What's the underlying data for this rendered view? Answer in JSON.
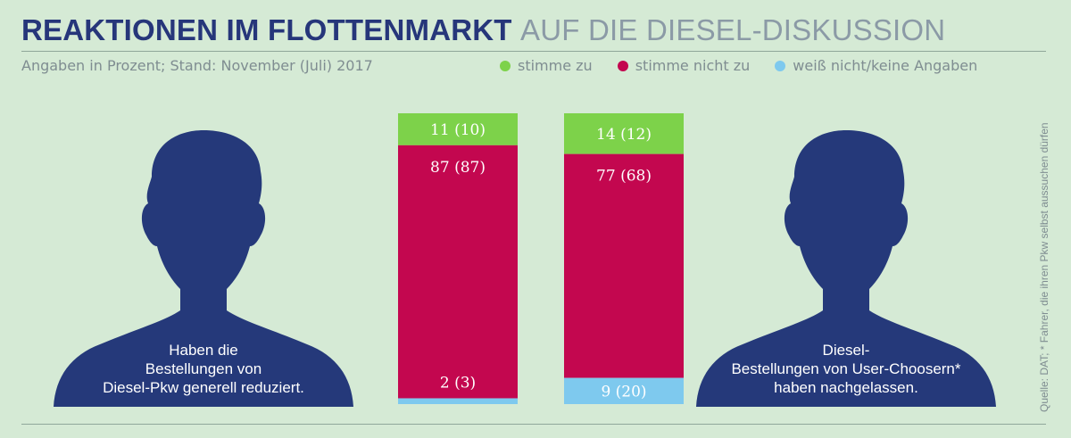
{
  "title_main": "REAKTIONEN IM FLOTTENMARKT",
  "title_rest": "AUF DIE DIESEL-DISKUSSION",
  "subtitle": "Angaben in Prozent; Stand: November (Juli) 2017",
  "source_note": "Quelle: DAT; * Fahrer, die ihren Pkw selbst aussuchen dürfen",
  "colors": {
    "agree": "#7dd24a",
    "disagree": "#c3074f",
    "unknown": "#7ec9ee",
    "silhouette": "#25397a"
  },
  "chart_data": {
    "type": "bar",
    "stacked": true,
    "legend_placement": "top-right",
    "legend": [
      "stimme zu",
      "stimme nicht zu",
      "weiß nicht/keine Angaben"
    ],
    "categories": [
      "Haben die Bestellungen von Diesel-Pkw generell reduziert.",
      "Diesel-Bestellungen von User-Choosern* haben nachgelassen."
    ],
    "category_lines": [
      [
        "Haben die",
        "Bestellungen von",
        "Diesel-Pkw generell reduziert."
      ],
      [
        "Diesel-",
        "Bestellungen von User-Choosern*",
        "haben nachgelassen."
      ]
    ],
    "series": [
      {
        "name": "stimme zu",
        "values": [
          11,
          14
        ],
        "previous": [
          10,
          12
        ],
        "labels": [
          "11 (10)",
          "14 (12)"
        ]
      },
      {
        "name": "stimme nicht zu",
        "values": [
          87,
          77
        ],
        "previous": [
          87,
          68
        ],
        "labels": [
          "87 (87)",
          "77 (68)"
        ]
      },
      {
        "name": "weiß nicht/keine Angaben",
        "values": [
          2,
          9
        ],
        "previous": [
          3,
          20
        ],
        "labels": [
          "2 (3)",
          "9 (20)"
        ]
      }
    ]
  }
}
